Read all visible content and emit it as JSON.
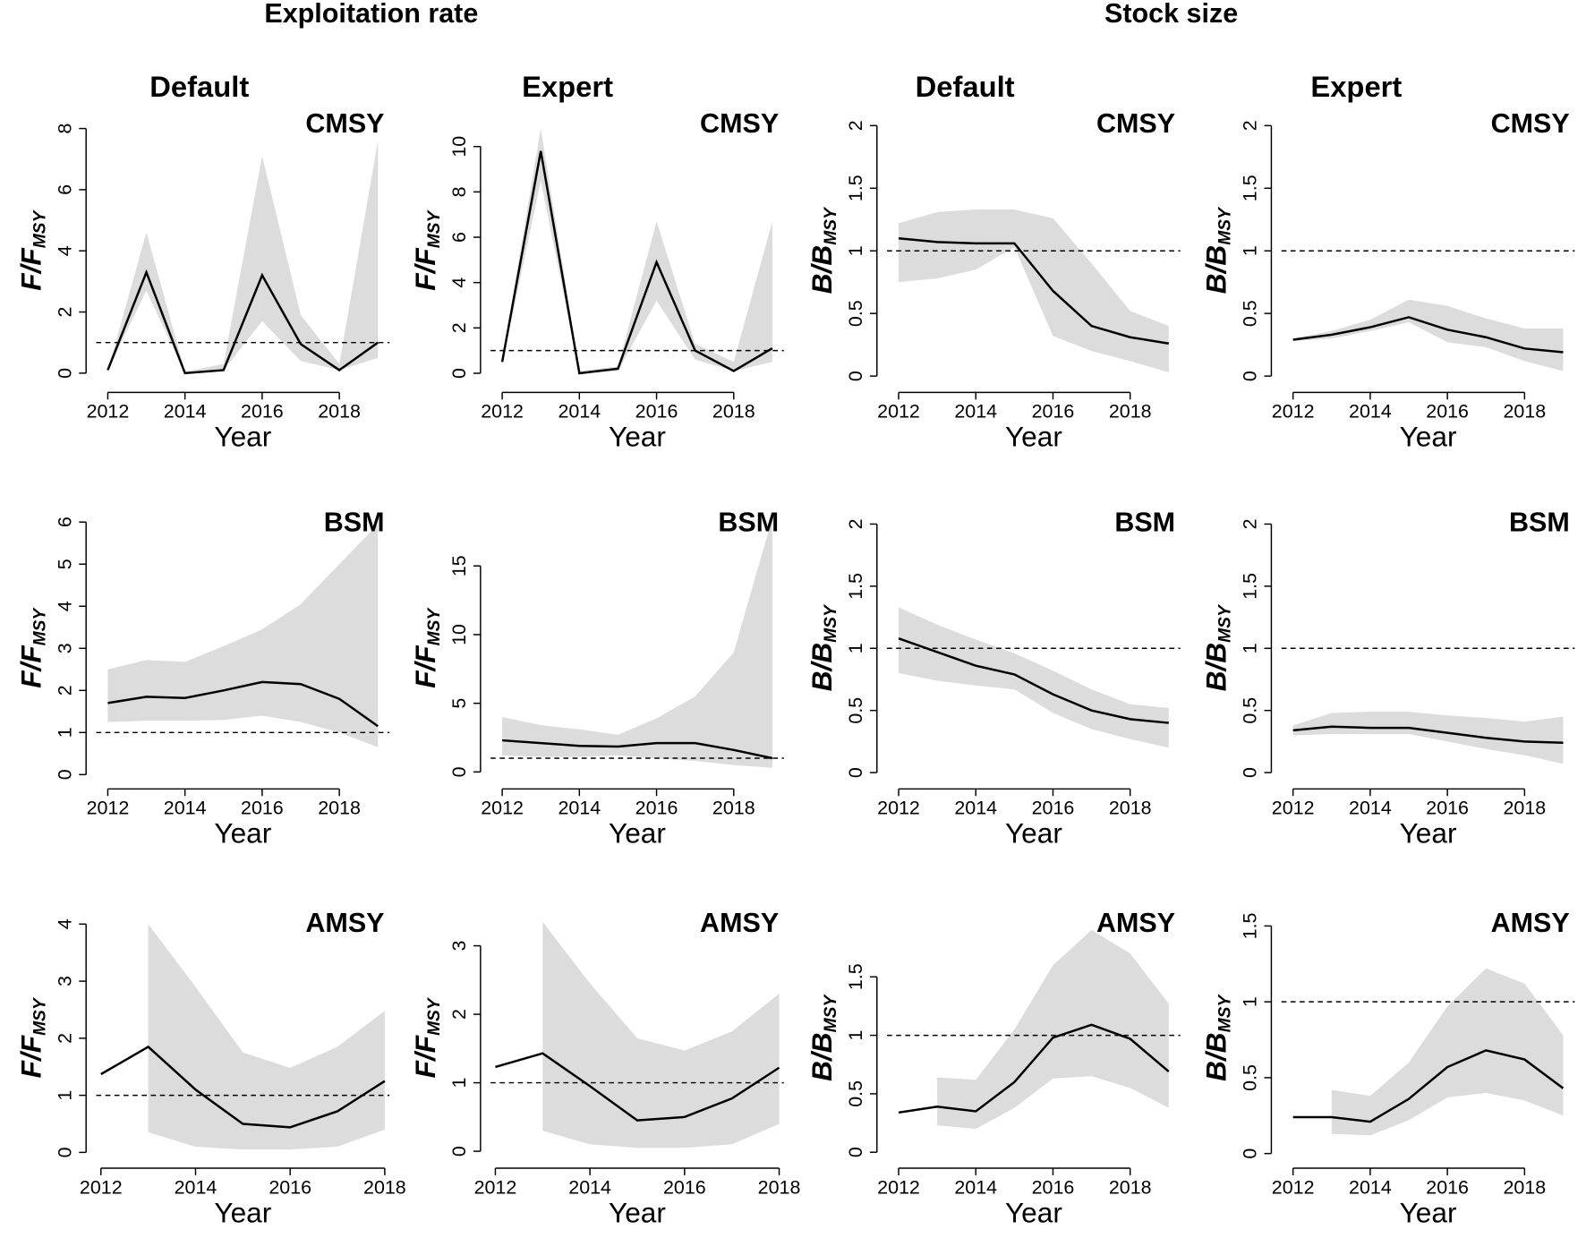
{
  "headers": {
    "groups": [
      "Exploitation rate",
      "Stock size"
    ],
    "columns": [
      "Default",
      "Expert",
      "Default",
      "Expert"
    ]
  },
  "chart_data": [
    {
      "type": "line",
      "title": "CMSY",
      "ylabel": "F/F",
      "ylabel_subscript": "MSY",
      "xlabel": "Year",
      "x": [
        2012,
        2013,
        2014,
        2015,
        2016,
        2017,
        2018,
        2019
      ],
      "xlim": [
        2011.7,
        2019.3
      ],
      "xticks": [
        2012,
        2014,
        2016,
        2018
      ],
      "ylim": [
        -0.3,
        8.3
      ],
      "yticks": [
        0,
        2,
        4,
        6,
        8
      ],
      "reference_line": 1,
      "series": [
        {
          "color": "#000000",
          "values": [
            0.1,
            3.3,
            0,
            0.1,
            3.2,
            0.95,
            0.1,
            1.0
          ]
        }
      ],
      "band": {
        "color": "#dcdcdc",
        "lower": [
          0.1,
          2.7,
          0,
          0.1,
          1.7,
          0.4,
          0.1,
          0.5
        ],
        "upper": [
          0.1,
          4.6,
          0.05,
          0.3,
          7.1,
          1.9,
          0.3,
          7.6
        ]
      }
    },
    {
      "type": "line",
      "title": "CMSY",
      "ylabel": "F/F",
      "ylabel_subscript": "MSY",
      "xlabel": "Year",
      "x": [
        2012,
        2013,
        2014,
        2015,
        2016,
        2017,
        2018,
        2019
      ],
      "xlim": [
        2011.7,
        2019.3
      ],
      "xticks": [
        2012,
        2014,
        2016,
        2018
      ],
      "ylim": [
        -0.4,
        11.2
      ],
      "yticks": [
        0,
        2,
        4,
        6,
        8,
        10
      ],
      "reference_line": 1,
      "series": [
        {
          "color": "#000000",
          "values": [
            0.5,
            9.8,
            0,
            0.2,
            4.9,
            1.0,
            0.1,
            1.1
          ]
        }
      ],
      "band": {
        "color": "#dcdcdc",
        "lower": [
          0.4,
          8.5,
          0,
          0.1,
          3.2,
          0.6,
          0.1,
          0.5
        ],
        "upper": [
          0.6,
          10.8,
          0.1,
          0.3,
          6.7,
          1.3,
          0.5,
          6.7
        ]
      }
    },
    {
      "type": "line",
      "title": "CMSY",
      "ylabel": "B/B",
      "ylabel_subscript": "MSY",
      "xlabel": "Year",
      "x": [
        2012,
        2013,
        2014,
        2015,
        2016,
        2017,
        2018,
        2019
      ],
      "xlim": [
        2011.7,
        2019.3
      ],
      "xticks": [
        2012,
        2014,
        2016,
        2018
      ],
      "ylim": [
        -0.05,
        2.05
      ],
      "yticks": [
        0,
        0.5,
        1,
        1.5,
        2
      ],
      "reference_line": 1,
      "series": [
        {
          "color": "#000000",
          "values": [
            1.1,
            1.07,
            1.06,
            1.06,
            0.68,
            0.4,
            0.31,
            0.26
          ]
        }
      ],
      "band": {
        "color": "#dcdcdc",
        "lower": [
          0.75,
          0.78,
          0.85,
          1.03,
          0.32,
          0.2,
          0.12,
          0.03
        ],
        "upper": [
          1.22,
          1.31,
          1.33,
          1.33,
          1.26,
          0.9,
          0.52,
          0.4
        ]
      }
    },
    {
      "type": "line",
      "title": "CMSY",
      "ylabel": "B/B",
      "ylabel_subscript": "MSY",
      "xlabel": "Year",
      "x": [
        2012,
        2013,
        2014,
        2015,
        2016,
        2017,
        2018,
        2019
      ],
      "xlim": [
        2011.7,
        2019.3
      ],
      "xticks": [
        2012,
        2014,
        2016,
        2018
      ],
      "ylim": [
        -0.05,
        2.05
      ],
      "yticks": [
        0,
        0.5,
        1,
        1.5,
        2
      ],
      "reference_line": 1,
      "series": [
        {
          "color": "#000000",
          "values": [
            0.29,
            0.33,
            0.39,
            0.47,
            0.37,
            0.31,
            0.22,
            0.19
          ]
        }
      ],
      "band": {
        "color": "#dcdcdc",
        "lower": [
          0.28,
          0.3,
          0.36,
          0.43,
          0.27,
          0.23,
          0.12,
          0.04
        ],
        "upper": [
          0.3,
          0.36,
          0.45,
          0.61,
          0.56,
          0.46,
          0.38,
          0.38
        ]
      }
    },
    {
      "type": "line",
      "title": "BSM",
      "ylabel": "F/F",
      "ylabel_subscript": "MSY",
      "xlabel": "Year",
      "x": [
        2012,
        2013,
        2014,
        2015,
        2016,
        2017,
        2018,
        2019
      ],
      "xlim": [
        2011.7,
        2019.3
      ],
      "xticks": [
        2012,
        2014,
        2016,
        2018
      ],
      "ylim": [
        -0.1,
        6.1
      ],
      "yticks": [
        0,
        1,
        2,
        3,
        4,
        5,
        6
      ],
      "reference_line": 1,
      "series": [
        {
          "color": "#000000",
          "values": [
            1.7,
            1.85,
            1.82,
            2.0,
            2.2,
            2.15,
            1.8,
            1.15
          ]
        }
      ],
      "band": {
        "color": "#dcdcdc",
        "lower": [
          1.25,
          1.28,
          1.28,
          1.3,
          1.4,
          1.25,
          1.0,
          0.65
        ],
        "upper": [
          2.5,
          2.72,
          2.68,
          3.05,
          3.45,
          4.05,
          5.0,
          5.95
        ]
      }
    },
    {
      "type": "line",
      "title": "BSM",
      "ylabel": "F/F",
      "ylabel_subscript": "MSY",
      "xlabel": "Year",
      "x": [
        2012,
        2013,
        2014,
        2015,
        2016,
        2017,
        2018,
        2019
      ],
      "xlim": [
        2011.7,
        2019.3
      ],
      "xticks": [
        2012,
        2014,
        2016,
        2018
      ],
      "ylim": [
        -0.5,
        18.5
      ],
      "yticks": [
        0,
        5,
        10,
        15
      ],
      "reference_line": 1,
      "series": [
        {
          "color": "#000000",
          "values": [
            2.3,
            2.1,
            1.9,
            1.85,
            2.1,
            2.1,
            1.6,
            1.0
          ]
        }
      ],
      "band": {
        "color": "#dcdcdc",
        "lower": [
          1.2,
          1.1,
          1.1,
          1.2,
          1.0,
          0.8,
          0.5,
          0.3
        ],
        "upper": [
          4.0,
          3.4,
          3.1,
          2.7,
          3.9,
          5.5,
          8.7,
          18.5
        ]
      }
    },
    {
      "type": "line",
      "title": "BSM",
      "ylabel": "B/B",
      "ylabel_subscript": "MSY",
      "xlabel": "Year",
      "x": [
        2012,
        2013,
        2014,
        2015,
        2016,
        2017,
        2018,
        2019
      ],
      "xlim": [
        2011.7,
        2019.3
      ],
      "xticks": [
        2012,
        2014,
        2016,
        2018
      ],
      "ylim": [
        -0.05,
        2.05
      ],
      "yticks": [
        0,
        0.5,
        1,
        1.5,
        2
      ],
      "reference_line": 1,
      "series": [
        {
          "color": "#000000",
          "values": [
            1.08,
            0.97,
            0.86,
            0.79,
            0.63,
            0.5,
            0.43,
            0.4
          ]
        }
      ],
      "band": {
        "color": "#dcdcdc",
        "lower": [
          0.8,
          0.74,
          0.7,
          0.67,
          0.48,
          0.35,
          0.27,
          0.2
        ],
        "upper": [
          1.33,
          1.19,
          1.07,
          0.96,
          0.82,
          0.67,
          0.55,
          0.52
        ]
      }
    },
    {
      "type": "line",
      "title": "BSM",
      "ylabel": "B/B",
      "ylabel_subscript": "MSY",
      "xlabel": "Year",
      "x": [
        2012,
        2013,
        2014,
        2015,
        2016,
        2017,
        2018,
        2019
      ],
      "xlim": [
        2011.7,
        2019.3
      ],
      "xticks": [
        2012,
        2014,
        2016,
        2018
      ],
      "ylim": [
        -0.05,
        2.05
      ],
      "yticks": [
        0,
        0.5,
        1,
        1.5,
        2
      ],
      "reference_line": 1,
      "series": [
        {
          "color": "#000000",
          "values": [
            0.34,
            0.37,
            0.36,
            0.36,
            0.32,
            0.28,
            0.25,
            0.24
          ]
        }
      ],
      "band": {
        "color": "#dcdcdc",
        "lower": [
          0.3,
          0.31,
          0.31,
          0.31,
          0.25,
          0.19,
          0.14,
          0.07
        ],
        "upper": [
          0.38,
          0.48,
          0.49,
          0.49,
          0.46,
          0.44,
          0.41,
          0.45
        ]
      }
    },
    {
      "type": "line",
      "title": "AMSY",
      "ylabel": "F/F",
      "ylabel_subscript": "MSY",
      "xlabel": "Year",
      "x": [
        2012,
        2013,
        2014,
        2015,
        2016,
        2017,
        2018
      ],
      "xlim": [
        2011.9,
        2018.1
      ],
      "xticks": [
        2012,
        2014,
        2016,
        2018
      ],
      "ylim": [
        -0.1,
        4.1
      ],
      "yticks": [
        0,
        1,
        2,
        3,
        4
      ],
      "reference_line": 1,
      "series": [
        {
          "color": "#000000",
          "values": [
            1.37,
            1.85,
            1.1,
            0.5,
            0.44,
            0.72,
            1.25
          ]
        }
      ],
      "band": {
        "color": "#dcdcdc",
        "lower": [
          null,
          0.35,
          0.1,
          0.05,
          0.05,
          0.1,
          0.4
        ],
        "upper": [
          null,
          4.0,
          2.9,
          1.75,
          1.48,
          1.85,
          2.48
        ]
      }
    },
    {
      "type": "line",
      "title": "AMSY",
      "ylabel": "F/F",
      "ylabel_subscript": "MSY",
      "xlabel": "Year",
      "x": [
        2012,
        2013,
        2014,
        2015,
        2016,
        2017,
        2018
      ],
      "xlim": [
        2011.9,
        2018.1
      ],
      "xticks": [
        2012,
        2014,
        2016,
        2018
      ],
      "ylim": [
        -0.1,
        3.4
      ],
      "yticks": [
        0,
        1,
        2,
        3
      ],
      "reference_line": 1,
      "series": [
        {
          "color": "#000000",
          "values": [
            1.23,
            1.43,
            0.95,
            0.45,
            0.5,
            0.77,
            1.22
          ]
        }
      ],
      "band": {
        "color": "#dcdcdc",
        "lower": [
          null,
          0.3,
          0.1,
          0.05,
          0.05,
          0.1,
          0.4
        ],
        "upper": [
          null,
          3.35,
          2.45,
          1.65,
          1.47,
          1.75,
          2.3
        ]
      }
    },
    {
      "type": "line",
      "title": "AMSY",
      "ylabel": "B/B",
      "ylabel_subscript": "MSY",
      "xlabel": "Year",
      "x": [
        2012,
        2013,
        2014,
        2015,
        2016,
        2017,
        2018,
        2019
      ],
      "xlim": [
        2011.7,
        2019.3
      ],
      "xticks": [
        2012,
        2014,
        2016,
        2018
      ],
      "ylim": [
        -0.05,
        2.0
      ],
      "yticks": [
        0,
        0.5,
        1,
        1.5
      ],
      "reference_line": 1,
      "series": [
        {
          "color": "#000000",
          "values": [
            0.34,
            0.39,
            0.35,
            0.6,
            0.98,
            1.09,
            0.97,
            0.69
          ]
        }
      ],
      "band": {
        "color": "#dcdcdc",
        "lower": [
          null,
          0.23,
          0.2,
          0.38,
          0.63,
          0.65,
          0.55,
          0.38
        ],
        "upper": [
          null,
          0.64,
          0.62,
          1.05,
          1.6,
          1.9,
          1.7,
          1.27
        ]
      }
    },
    {
      "type": "line",
      "title": "AMSY",
      "ylabel": "B/B",
      "ylabel_subscript": "MSY",
      "xlabel": "Year",
      "x": [
        2012,
        2013,
        2014,
        2015,
        2016,
        2017,
        2018,
        2019
      ],
      "xlim": [
        2011.7,
        2019.3
      ],
      "xticks": [
        2012,
        2014,
        2016,
        2018
      ],
      "ylim": [
        -0.03,
        1.55
      ],
      "yticks": [
        0,
        0.5,
        1,
        1.5
      ],
      "reference_line": 1,
      "series": [
        {
          "color": "#000000",
          "values": [
            0.24,
            0.24,
            0.21,
            0.36,
            0.57,
            0.68,
            0.62,
            0.43
          ]
        }
      ],
      "band": {
        "color": "#dcdcdc",
        "lower": [
          null,
          0.13,
          0.12,
          0.22,
          0.37,
          0.4,
          0.35,
          0.25
        ],
        "upper": [
          null,
          0.42,
          0.38,
          0.6,
          0.97,
          1.22,
          1.12,
          0.78
        ]
      }
    }
  ]
}
